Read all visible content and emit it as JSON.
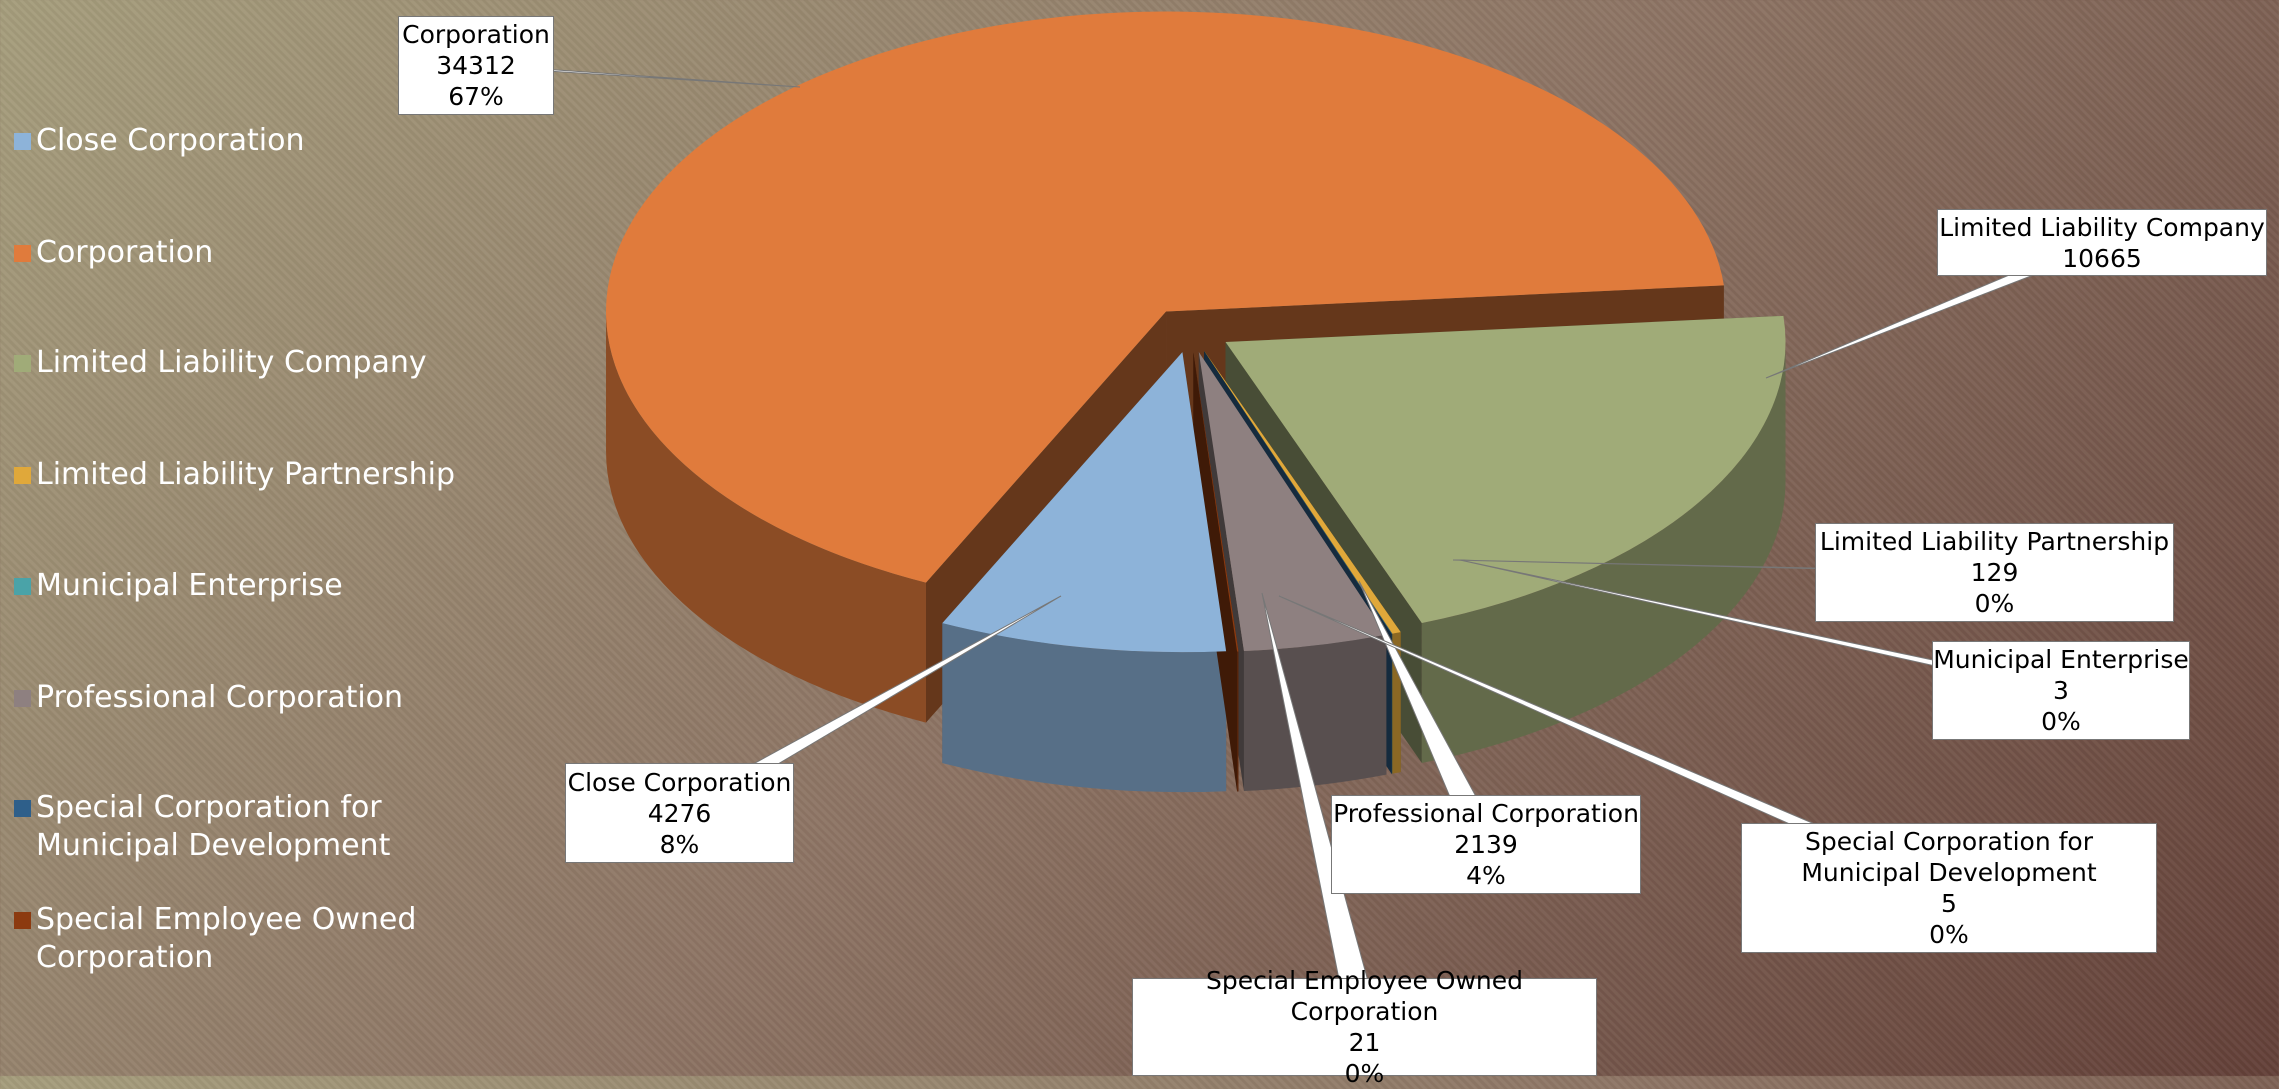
{
  "chart_data": {
    "type": "pie3d",
    "categories": [
      "Close Corporation",
      "Corporation",
      "Limited Liability Company",
      "Limited Liability Partnership",
      "Municipal Enterprise",
      "Professional Corporation",
      "Special Corporation for Municipal Development",
      "Special Employee Owned Corporation"
    ],
    "values": [
      4276,
      34312,
      10665,
      129,
      3,
      2139,
      5,
      21
    ],
    "percent_labels": [
      "8%",
      "67%",
      null,
      "0%",
      "0%",
      "4%",
      "0%",
      "0%"
    ],
    "colors": [
      "#8db3d9",
      "#e07b3c",
      "#a0ab78",
      "#e0a83a",
      "#4aa3a8",
      "#8e8080",
      "#2e5f8a",
      "#8c3a10"
    ],
    "legend": "left"
  }
}
